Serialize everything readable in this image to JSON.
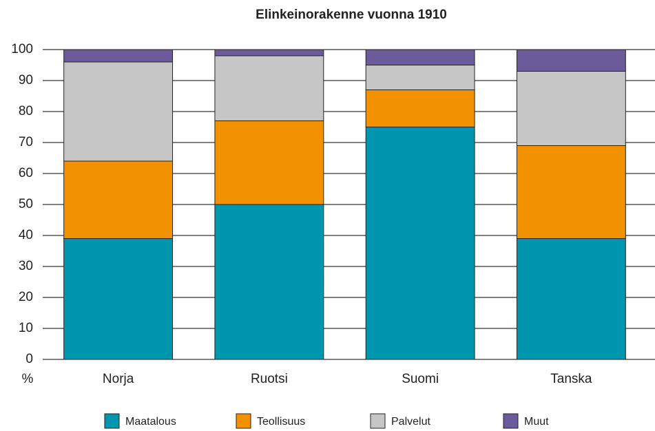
{
  "chart_data": {
    "type": "stacked_bar",
    "title": "Elinkeinorakenne vuonna 1910",
    "ylabel": "%",
    "categories": [
      "Norja",
      "Ruotsi",
      "Suomi",
      "Tanska"
    ],
    "series": [
      {
        "name": "Maatalous",
        "color": "#0097ae",
        "values": [
          39,
          50,
          75,
          39
        ]
      },
      {
        "name": "Teollisuus",
        "color": "#f39200",
        "values": [
          25,
          27,
          12,
          30
        ]
      },
      {
        "name": "Palvelut",
        "color": "#c6c6c6",
        "values": [
          32,
          21,
          8,
          24
        ]
      },
      {
        "name": "Muut",
        "color": "#6c5b9b",
        "values": [
          4,
          2,
          5,
          7
        ]
      }
    ],
    "ylim": [
      0,
      100
    ],
    "yticks": [
      0,
      10,
      20,
      30,
      40,
      50,
      60,
      70,
      80,
      90,
      100
    ],
    "grid": true,
    "legend": "bottom"
  }
}
